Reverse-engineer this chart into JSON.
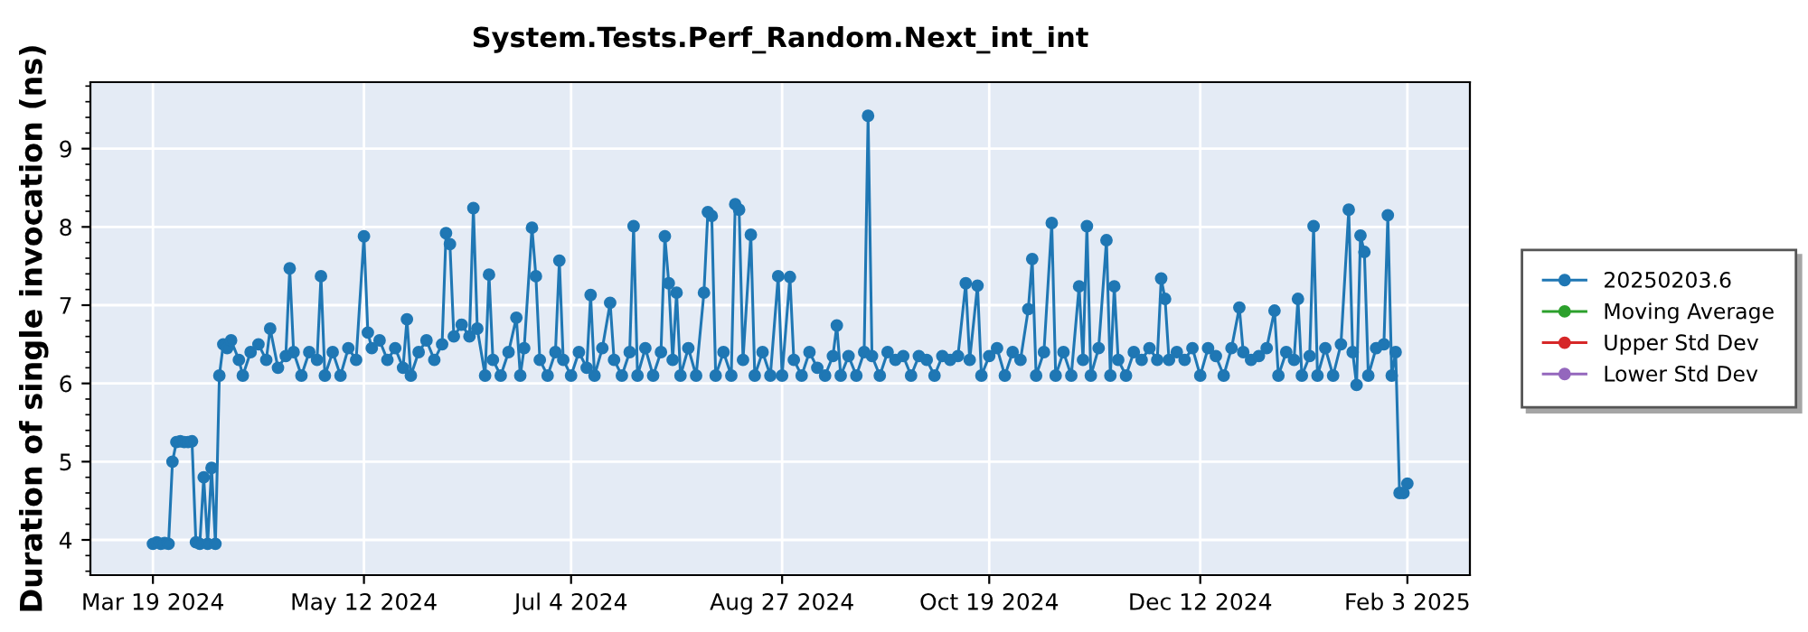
{
  "chart_data": {
    "type": "line",
    "title": "System.Tests.Perf_Random.Next_int_int",
    "ylabel": "Duration of single invocation (ns)",
    "xlim": [
      "2024-03-03",
      "2025-02-19"
    ],
    "ylim": [
      3.55,
      9.85
    ],
    "yticks": [
      4,
      5,
      6,
      7,
      8,
      9
    ],
    "xticks": [
      {
        "value": "2024-03-19",
        "label": "Mar 19 2024"
      },
      {
        "value": "2024-05-12",
        "label": "May 12 2024"
      },
      {
        "value": "2024-07-04",
        "label": "Jul 4 2024"
      },
      {
        "value": "2024-08-27",
        "label": "Aug 27 2024"
      },
      {
        "value": "2024-10-19",
        "label": "Oct 19 2024"
      },
      {
        "value": "2024-12-12",
        "label": "Dec 12 2024"
      },
      {
        "value": "2025-02-03",
        "label": "Feb 3 2025"
      }
    ],
    "grid": true,
    "legend": "right",
    "marker": "circle",
    "line_style": "solid",
    "series": [
      {
        "name": "20250203.6",
        "color": "#1f77b4",
        "x": [
          "2024-03-19",
          "2024-03-20",
          "2024-03-21",
          "2024-03-22",
          "2024-03-23",
          "2024-03-24",
          "2024-03-25",
          "2024-03-26",
          "2024-03-27",
          "2024-03-28",
          "2024-03-29",
          "2024-03-30",
          "2024-03-31",
          "2024-04-01",
          "2024-04-02",
          "2024-04-03",
          "2024-04-04",
          "2024-04-05",
          "2024-04-06",
          "2024-04-07",
          "2024-04-08",
          "2024-04-10",
          "2024-04-11",
          "2024-04-13",
          "2024-04-15",
          "2024-04-17",
          "2024-04-18",
          "2024-04-20",
          "2024-04-22",
          "2024-04-23",
          "2024-04-24",
          "2024-04-26",
          "2024-04-28",
          "2024-04-30",
          "2024-05-01",
          "2024-05-02",
          "2024-05-04",
          "2024-05-06",
          "2024-05-08",
          "2024-05-10",
          "2024-05-12",
          "2024-05-13",
          "2024-05-14",
          "2024-05-16",
          "2024-05-18",
          "2024-05-20",
          "2024-05-22",
          "2024-05-23",
          "2024-05-24",
          "2024-05-26",
          "2024-05-28",
          "2024-05-30",
          "2024-06-01",
          "2024-06-02",
          "2024-06-03",
          "2024-06-04",
          "2024-06-06",
          "2024-06-08",
          "2024-06-09",
          "2024-06-10",
          "2024-06-12",
          "2024-06-13",
          "2024-06-14",
          "2024-06-16",
          "2024-06-18",
          "2024-06-20",
          "2024-06-21",
          "2024-06-22",
          "2024-06-24",
          "2024-06-25",
          "2024-06-26",
          "2024-06-28",
          "2024-06-30",
          "2024-07-01",
          "2024-07-02",
          "2024-07-04",
          "2024-07-06",
          "2024-07-08",
          "2024-07-09",
          "2024-07-10",
          "2024-07-12",
          "2024-07-14",
          "2024-07-15",
          "2024-07-17",
          "2024-07-19",
          "2024-07-20",
          "2024-07-21",
          "2024-07-23",
          "2024-07-25",
          "2024-07-27",
          "2024-07-28",
          "2024-07-29",
          "2024-07-30",
          "2024-07-31",
          "2024-08-01",
          "2024-08-03",
          "2024-08-05",
          "2024-08-07",
          "2024-08-08",
          "2024-08-09",
          "2024-08-10",
          "2024-08-12",
          "2024-08-14",
          "2024-08-15",
          "2024-08-16",
          "2024-08-17",
          "2024-08-19",
          "2024-08-20",
          "2024-08-22",
          "2024-08-24",
          "2024-08-26",
          "2024-08-27",
          "2024-08-29",
          "2024-08-30",
          "2024-09-01",
          "2024-09-03",
          "2024-09-05",
          "2024-09-07",
          "2024-09-09",
          "2024-09-10",
          "2024-09-11",
          "2024-09-13",
          "2024-09-15",
          "2024-09-17",
          "2024-09-18",
          "2024-09-19",
          "2024-09-21",
          "2024-09-23",
          "2024-09-25",
          "2024-09-27",
          "2024-09-29",
          "2024-10-01",
          "2024-10-03",
          "2024-10-05",
          "2024-10-07",
          "2024-10-09",
          "2024-10-11",
          "2024-10-13",
          "2024-10-14",
          "2024-10-16",
          "2024-10-17",
          "2024-10-19",
          "2024-10-21",
          "2024-10-23",
          "2024-10-25",
          "2024-10-27",
          "2024-10-29",
          "2024-10-30",
          "2024-10-31",
          "2024-11-02",
          "2024-11-04",
          "2024-11-05",
          "2024-11-07",
          "2024-11-09",
          "2024-11-11",
          "2024-11-12",
          "2024-11-13",
          "2024-11-14",
          "2024-11-16",
          "2024-11-18",
          "2024-11-19",
          "2024-11-20",
          "2024-11-21",
          "2024-11-23",
          "2024-11-25",
          "2024-11-27",
          "2024-11-29",
          "2024-12-01",
          "2024-12-02",
          "2024-12-03",
          "2024-12-04",
          "2024-12-06",
          "2024-12-08",
          "2024-12-10",
          "2024-12-12",
          "2024-12-14",
          "2024-12-16",
          "2024-12-18",
          "2024-12-20",
          "2024-12-22",
          "2024-12-23",
          "2024-12-25",
          "2024-12-27",
          "2024-12-29",
          "2024-12-31",
          "2025-01-01",
          "2025-01-03",
          "2025-01-05",
          "2025-01-06",
          "2025-01-07",
          "2025-01-09",
          "2025-01-10",
          "2025-01-11",
          "2025-01-13",
          "2025-01-15",
          "2025-01-17",
          "2025-01-19",
          "2025-01-20",
          "2025-01-21",
          "2025-01-22",
          "2025-01-23",
          "2025-01-24",
          "2025-01-26",
          "2025-01-28",
          "2025-01-29",
          "2025-01-30",
          "2025-01-31",
          "2025-02-01",
          "2025-02-02",
          "2025-02-03"
        ],
        "values": [
          3.95,
          3.97,
          3.95,
          3.96,
          3.95,
          5.0,
          5.25,
          5.26,
          5.25,
          5.25,
          5.26,
          3.97,
          3.95,
          4.8,
          3.95,
          4.92,
          3.95,
          6.1,
          6.5,
          6.45,
          6.55,
          6.3,
          6.1,
          6.4,
          6.5,
          6.3,
          6.7,
          6.2,
          6.35,
          7.47,
          6.4,
          6.1,
          6.4,
          6.3,
          7.37,
          6.1,
          6.4,
          6.1,
          6.45,
          6.3,
          7.88,
          6.65,
          6.45,
          6.55,
          6.3,
          6.45,
          6.2,
          6.82,
          6.1,
          6.4,
          6.55,
          6.3,
          6.5,
          7.92,
          7.78,
          6.6,
          6.75,
          6.6,
          8.24,
          6.7,
          6.1,
          7.39,
          6.3,
          6.1,
          6.4,
          6.84,
          6.1,
          6.45,
          7.99,
          7.37,
          6.3,
          6.1,
          6.4,
          7.57,
          6.3,
          6.1,
          6.4,
          6.2,
          7.13,
          6.1,
          6.45,
          7.03,
          6.3,
          6.1,
          6.4,
          8.01,
          6.1,
          6.45,
          6.1,
          6.4,
          7.88,
          7.28,
          6.3,
          7.16,
          6.1,
          6.45,
          6.1,
          7.16,
          8.19,
          8.14,
          6.1,
          6.4,
          6.1,
          8.29,
          8.22,
          6.3,
          7.9,
          6.1,
          6.4,
          6.1,
          7.37,
          6.1,
          7.36,
          6.3,
          6.1,
          6.4,
          6.2,
          6.1,
          6.35,
          6.74,
          6.1,
          6.35,
          6.1,
          6.4,
          9.42,
          6.35,
          6.1,
          6.4,
          6.3,
          6.35,
          6.1,
          6.35,
          6.3,
          6.1,
          6.35,
          6.3,
          6.35,
          7.28,
          6.3,
          7.25,
          6.1,
          6.35,
          6.45,
          6.1,
          6.4,
          6.3,
          6.95,
          7.59,
          6.1,
          6.4,
          8.05,
          6.1,
          6.4,
          6.1,
          7.24,
          6.3,
          8.01,
          6.1,
          6.45,
          7.83,
          6.1,
          7.24,
          6.3,
          6.1,
          6.4,
          6.3,
          6.45,
          6.3,
          7.34,
          7.08,
          6.3,
          6.4,
          6.3,
          6.45,
          6.1,
          6.45,
          6.35,
          6.1,
          6.45,
          6.97,
          6.4,
          6.3,
          6.35,
          6.45,
          6.93,
          6.1,
          6.4,
          6.3,
          7.08,
          6.1,
          6.35,
          8.01,
          6.1,
          6.45,
          6.1,
          6.5,
          8.22,
          6.4,
          5.98,
          7.89,
          7.68,
          6.1,
          6.45,
          6.5,
          8.15,
          6.1,
          6.4,
          4.6,
          4.6,
          4.72
        ]
      },
      {
        "name": "Moving Average",
        "color": "#2ca02c"
      },
      {
        "name": "Upper Std Dev",
        "color": "#d62728"
      },
      {
        "name": "Lower Std Dev",
        "color": "#9467bd"
      }
    ]
  }
}
